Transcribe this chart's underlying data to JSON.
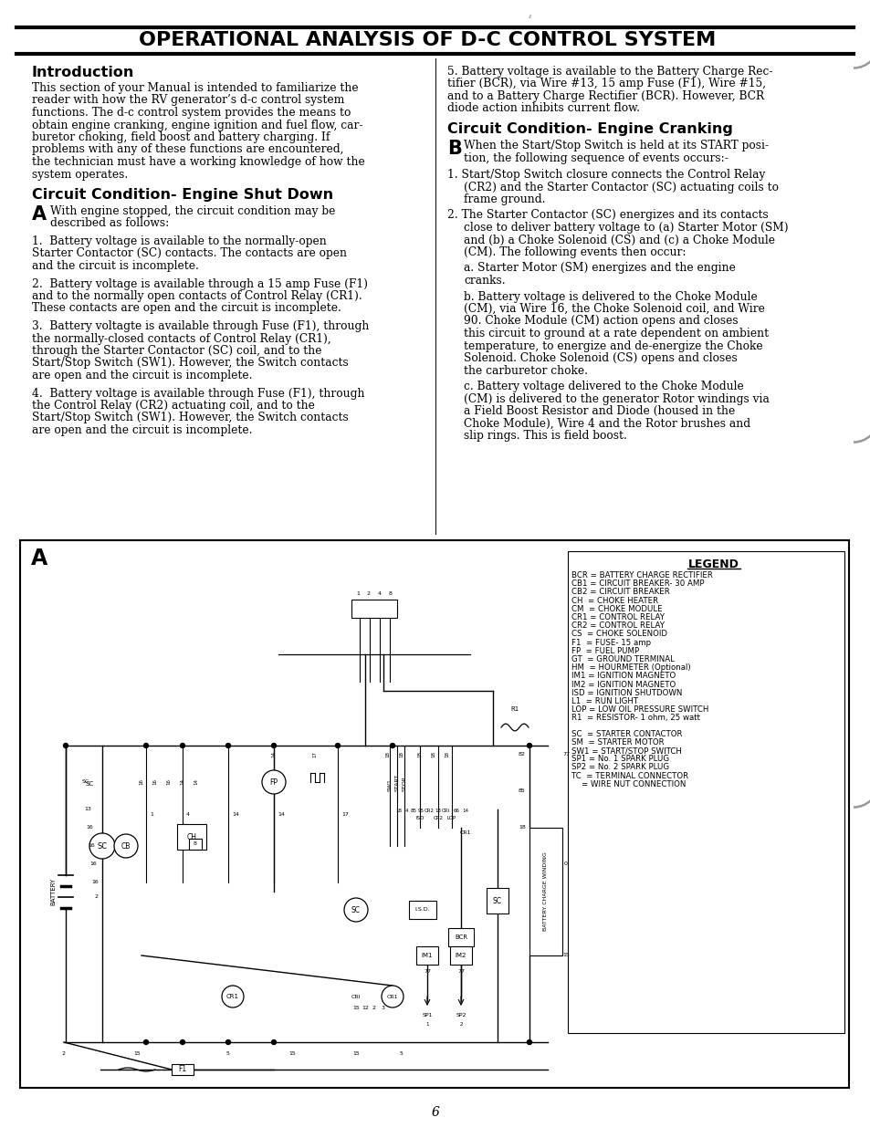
{
  "title": "OPERATIONAL ANALYSIS OF D-C CONTROL SYSTEM",
  "page_number": "6",
  "background_color": "#ffffff",
  "left_col": {
    "intro_heading": "Introduction",
    "intro_body_lines": [
      "This section of your Manual is intended to familiarize the",
      "reader with how the RV generator’s d-c control system",
      "functions. The d-c control system provides the means to",
      "obtain engine cranking, engine ignition and fuel flow, car-",
      "buretor choking, field boost and battery charging. If",
      "problems with any of these functions are encountered,",
      "the technician must have a working knowledge of how the",
      "system operates."
    ],
    "section1_heading": "Circuit Condition- Engine Shut Down",
    "section1_letter": "A",
    "section1_intro_lines": [
      "With engine stopped, the circuit condition may be",
      "described as follows:"
    ],
    "section1_items": [
      "1.  Battery voltage is available to the normally-open\n    Starter Contactor (SC) contacts. The contacts are open\n    and the circuit is incomplete.",
      "2.  Battery voltage is available through a 15 amp Fuse (F1)\n    and to the normally open contacts of Control Relay (CR1).\n    These contacts are open and the circuit is incomplete.",
      "3.  Battery voltagte is available through Fuse (F1), through\n    the normally-closed contacts of Control Relay (CR1),\n    through the Starter Contactor (SC) coil, and to the\n    Start/Stop Switch (SW1). However, the Switch contacts\n    are open and the circuit is incomplete.",
      "4.  Battery voltage is available through Fuse (F1), through\n    the Control Relay (CR2) actuating coil, and to the\n    Start/Stop Switch (SW1). However, the Switch contacts\n    are open and the circuit is incomplete."
    ]
  },
  "right_col": {
    "item5_lines": [
      "5. Battery voltage is available to the Battery Charge Rec-",
      "tifier (BCR), via Wire #13, 15 amp Fuse (F1), Wire #15,",
      "and to a Battery Charge Rectifier (BCR). However, BCR",
      "diode action inhibits current flow."
    ],
    "section2_heading": "Circuit Condition- Engine Cranking",
    "section2_letter": "B",
    "section2_intro_lines": [
      "When the Start/Stop Switch is held at its START posi-",
      "tion, the following sequence of events occurs:-"
    ],
    "section2_items": [
      "1. Start/Stop Switch closure connects the Control Relay\n   (CR2) and the Starter Contactor (SC) actuating coils to\n   frame ground.",
      "2. The Starter Contactor (SC) energizes and its contacts\n   close to deliver battery voltage to (a) Starter Motor (SM)\n   and (b) a Choke Solenoid (CS) and (c) a Choke Module\n   (CM). The following events then occur:",
      "   a. Starter Motor (SM) energizes and the engine\n      cranks.",
      "   b. Battery voltage is delivered to the Choke Module\n      (CM), via Wire 16, the Choke Solenoid coil, and Wire\n      90. Choke Module (CM) action opens and closes\n      this circuit to ground at a rate dependent on ambient\n      temperature, to energize and de-energize the Choke\n      Solenoid. Choke Solenoid (CS) opens and closes\n      the carburetor choke.",
      "   c. Battery voltage delivered to the Choke Module\n      (CM) is delivered to the generator Rotor windings via\n      a Field Boost Resistor and Diode (housed in the\n      Choke Module), Wire 4 and the Rotor brushes and\n      slip rings. This is field boost."
    ]
  },
  "diagram_label": "A",
  "legend_title": "LEGEND",
  "legend_items_top": [
    "BCR = BATTERY CHARGE RECTIFIER",
    "CB1 = CIRCUIT BREAKER- 30 AMP",
    "CB2 = CIRCUIT BREAKER",
    "CH  = CHOKE HEATER",
    "CM  = CHOKE MODULE",
    "CR1 = CONTROL RELAY",
    "CR2 = CONTROL RELAY",
    "CS  = CHOKE SOLENOID",
    "F1  = FUSE- 15 amp",
    "FP  = FUEL PUMP",
    "GT  = GROUND TERMINAL",
    "HM  = HOURMETER (Optional)",
    "IM1 = IGNITION MAGNETO",
    "IM2 = IGNITION MAGNETO",
    "ISD = IGNITION SHUTDOWN",
    "L1  = RUN LIGHT",
    "LOP = LOW OIL PRESSURE SWITCH",
    "R1  = RESISTOR- 1 ohm, 25 watt"
  ],
  "legend_items_bot": [
    "SC  = STARTER CONTACTOR",
    "SM  = STARTER MOTOR",
    "SW1 = START/STOP SWITCH",
    "SP1 = No. 1 SPARK PLUG",
    "SP2 = No. 2 SPARK PLUG",
    "TC  = TERMINAL CONNECTOR",
    "    = WIRE NUT CONNECTION"
  ]
}
